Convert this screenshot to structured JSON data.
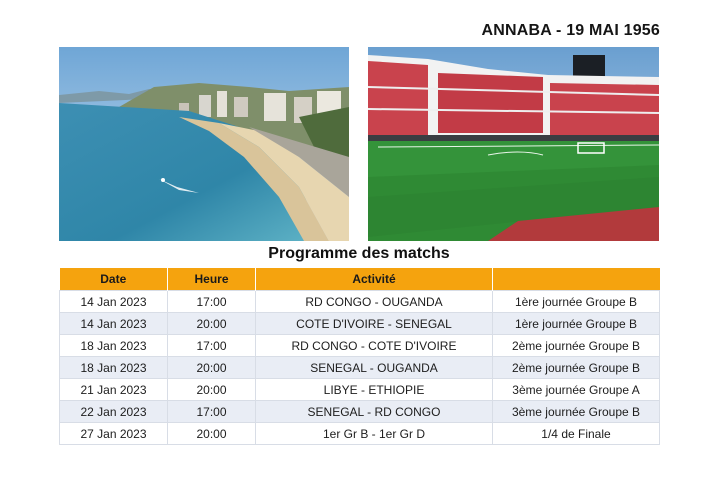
{
  "header": {
    "venue_date": "ANNABA - 19 MAI 1956"
  },
  "images": [
    {
      "subject": "beach-photo"
    },
    {
      "subject": "stadium-photo"
    }
  ],
  "schedule": {
    "title": "Programme des matchs",
    "columns": [
      "Date",
      "Heure",
      "Activité",
      ""
    ],
    "rows": [
      {
        "date": "14 Jan 2023",
        "time": "17:00",
        "match": "RD CONGO - OUGANDA",
        "stage": "1ère journée Groupe B"
      },
      {
        "date": "14 Jan 2023",
        "time": "20:00",
        "match": "COTE D'IVOIRE - SENEGAL",
        "stage": "1ère journée Groupe B"
      },
      {
        "date": "18 Jan 2023",
        "time": "17:00",
        "match": "RD CONGO - COTE D'IVOIRE",
        "stage": "2ème journée Groupe B"
      },
      {
        "date": "18 Jan 2023",
        "time": "20:00",
        "match": "SENEGAL - OUGANDA",
        "stage": "2ème journée Groupe B"
      },
      {
        "date": "21 Jan 2023",
        "time": "20:00",
        "match": "LIBYE - ETHIOPIE",
        "stage": "3ème journée Groupe A"
      },
      {
        "date": "22 Jan 2023",
        "time": "17:00",
        "match": "SENEGAL - RD CONGO",
        "stage": "3ème journée Groupe B"
      },
      {
        "date": "27 Jan 2023",
        "time": "20:00",
        "match": "1er Gr B - 1er Gr D",
        "stage": "1/4 de Finale"
      }
    ]
  },
  "colors": {
    "header_bg": "#f5a30e",
    "row_alt": "#e9edf5",
    "row_plain": "#ffffff"
  }
}
